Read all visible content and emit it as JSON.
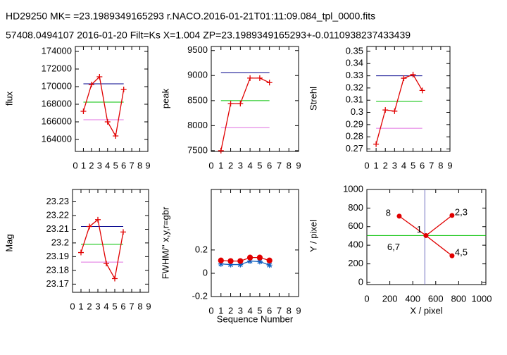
{
  "header": {
    "line1": "HD29250  MK=  =23.1989349165293 r.NACO.2016-01-21T01:11:09.084_tpl_0000.fits",
    "line2": "57408.0494107   2016-01-20  Filt=Ks  X=1.004  ZP=23.1989349165293+-0.0110938237433439"
  },
  "chart_data": [
    {
      "type": "line",
      "ylabel": "flux",
      "x": [
        1,
        2,
        3,
        4,
        5,
        6
      ],
      "xlim": [
        0,
        9
      ],
      "xticks": [
        0,
        1,
        2,
        3,
        4,
        5,
        6,
        7,
        8,
        9
      ],
      "ylim": [
        162640,
        174560
      ],
      "yticks": [
        164000,
        166000,
        168000,
        170000,
        172000,
        174000
      ],
      "series": [
        {
          "color": "#e00000",
          "marker": "plus",
          "values": [
            167200,
            170240,
            171120,
            166000,
            164400,
            169680
          ]
        }
      ],
      "ref_lines": [
        {
          "color": "#00008b",
          "y": 170320,
          "x": [
            1,
            6
          ]
        },
        {
          "color": "#00c000",
          "y": 168240,
          "x": [
            1,
            6
          ]
        },
        {
          "color": "#e070e0",
          "y": 166240,
          "x": [
            1,
            6
          ]
        }
      ]
    },
    {
      "type": "line",
      "ylabel": "peak",
      "x": [
        1,
        2,
        3,
        4,
        5,
        6
      ],
      "xlim": [
        0,
        9
      ],
      "xticks": [
        0,
        1,
        2,
        3,
        4,
        5,
        6,
        7,
        8,
        9
      ],
      "ylim": [
        7485,
        9581
      ],
      "yticks": [
        7500,
        8000,
        8500,
        9000,
        9500
      ],
      "series": [
        {
          "color": "#e00000",
          "marker": "plus",
          "values": [
            7500,
            8440,
            8440,
            8950,
            8950,
            8860
          ]
        }
      ],
      "ref_lines": [
        {
          "color": "#00008b",
          "y": 9060,
          "x": [
            1,
            6
          ]
        },
        {
          "color": "#00c000",
          "y": 8500,
          "x": [
            1,
            6
          ]
        },
        {
          "color": "#e070e0",
          "y": 7960,
          "x": [
            1,
            6
          ]
        }
      ]
    },
    {
      "type": "line",
      "ylabel": "Strehl",
      "x": [
        1,
        2,
        3,
        4,
        5,
        6
      ],
      "xlim": [
        0,
        9
      ],
      "xticks": [
        0,
        1,
        2,
        3,
        4,
        5,
        6,
        7,
        8,
        9
      ],
      "ylim": [
        0.268,
        0.354
      ],
      "yticks": [
        0.27,
        0.28,
        0.29,
        0.3,
        0.31,
        0.32,
        0.33,
        0.34,
        0.35
      ],
      "series": [
        {
          "color": "#e00000",
          "marker": "plus",
          "values": [
            0.274,
            0.302,
            0.301,
            0.328,
            0.331,
            0.318
          ]
        }
      ],
      "ref_lines": [
        {
          "color": "#00008b",
          "y": 0.33,
          "x": [
            1,
            6
          ]
        },
        {
          "color": "#00c000",
          "y": 0.309,
          "x": [
            1,
            6
          ]
        },
        {
          "color": "#e070e0",
          "y": 0.287,
          "x": [
            1,
            6
          ]
        }
      ]
    },
    {
      "type": "line",
      "ylabel": "Mag",
      "x": [
        1,
        2,
        3,
        4,
        5,
        6
      ],
      "xlim": [
        0,
        9
      ],
      "xticks": [
        0,
        1,
        2,
        3,
        4,
        5,
        6,
        7,
        8,
        9
      ],
      "ylim": [
        23.164,
        23.239
      ],
      "yticks": [
        23.17,
        23.18,
        23.19,
        23.2,
        23.21,
        23.22,
        23.23
      ],
      "series": [
        {
          "color": "#e00000",
          "marker": "plus",
          "values": [
            23.193,
            23.212,
            23.217,
            23.185,
            23.174,
            23.208
          ]
        }
      ],
      "ref_lines": [
        {
          "color": "#00008b",
          "y": 23.212,
          "x": [
            1,
            6
          ]
        },
        {
          "color": "#00c000",
          "y": 23.199,
          "x": [
            1,
            6
          ]
        },
        {
          "color": "#e070e0",
          "y": 23.186,
          "x": [
            1,
            6
          ]
        }
      ]
    },
    {
      "type": "line",
      "ylabel": "FWHM/'' x,y,r=gbr",
      "xlabel": "Sequence Number",
      "x": [
        1,
        2,
        3,
        4,
        5,
        6
      ],
      "xlim": [
        0,
        9
      ],
      "xticks": [
        0,
        1,
        2,
        3,
        4,
        5,
        6,
        7,
        8,
        9
      ],
      "ylim": [
        -0.2,
        0.72
      ],
      "yticks": [
        -0.2,
        0,
        0.2
      ],
      "series": [
        {
          "color": "#1060c0",
          "marker": "star",
          "values": [
            0.08,
            0.075,
            0.075,
            0.105,
            0.1,
            0.07
          ]
        },
        {
          "color": "#e00000",
          "marker": "circle",
          "values": [
            0.11,
            0.105,
            0.105,
            0.135,
            0.135,
            0.11
          ]
        }
      ]
    },
    {
      "type": "scatter",
      "ylabel": "Y / pixel",
      "xlabel": "X / pixel",
      "xlim": [
        0,
        1037
      ],
      "xticks": [
        0,
        200,
        400,
        600,
        800,
        1000
      ],
      "ylim": [
        -23,
        1000
      ],
      "yticks": [
        0,
        200,
        400,
        600,
        800,
        1000
      ],
      "series": [
        {
          "color": "#e00000",
          "x": [
            282,
            515,
            742,
            742
          ],
          "values": [
            713,
            504,
            721,
            287
          ],
          "labels": [
            "8",
            "1",
            "2,3",
            "4,5"
          ]
        }
      ],
      "annotation": "6,7",
      "ref_lines": [
        {
          "color": "#7070c0",
          "x": 505
        },
        {
          "color": "#00c000",
          "y": 505
        }
      ]
    }
  ]
}
